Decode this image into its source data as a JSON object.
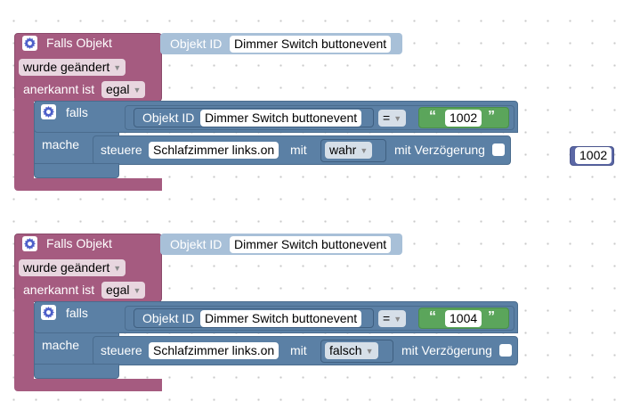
{
  "colors": {
    "event_block": "#a55b80",
    "logic_block": "#5b80a5",
    "text_block": "#5ba55b",
    "number_block": "#5b67a5",
    "object_id_block": "#a8c0d8"
  },
  "icons": {
    "mutator": "gear-icon"
  },
  "groups": [
    {
      "trigger": {
        "label": "Falls Objekt",
        "object_id_label": "Objekt ID",
        "object_id_value": "Dimmer Switch buttonevent",
        "changed_dropdown": "wurde geändert",
        "ack_label": "anerkannt ist",
        "ack_dropdown": "egal"
      },
      "if_block": {
        "falls_label": "falls",
        "mache_label": "mache",
        "condition": {
          "object_id_label": "Objekt ID",
          "object_id_value": "Dimmer Switch buttonevent",
          "operator": "=",
          "text_value": "1002"
        },
        "action": {
          "control_label": "steuere",
          "target": "Schlafzimmer links.on",
          "with_label": "mit",
          "value": "wahr",
          "delay_label": "mit Verzögerung"
        }
      }
    },
    {
      "trigger": {
        "label": "Falls Objekt",
        "object_id_label": "Objekt ID",
        "object_id_value": "Dimmer Switch buttonevent",
        "changed_dropdown": "wurde geändert",
        "ack_label": "anerkannt ist",
        "ack_dropdown": "egal"
      },
      "if_block": {
        "falls_label": "falls",
        "mache_label": "mache",
        "condition": {
          "object_id_label": "Objekt ID",
          "object_id_value": "Dimmer Switch buttonevent",
          "operator": "=",
          "text_value": "1004"
        },
        "action": {
          "control_label": "steuere",
          "target": "Schlafzimmer links.on",
          "with_label": "mit",
          "value": "falsch",
          "delay_label": "mit Verzögerung"
        }
      }
    }
  ],
  "loose_number": "1002"
}
